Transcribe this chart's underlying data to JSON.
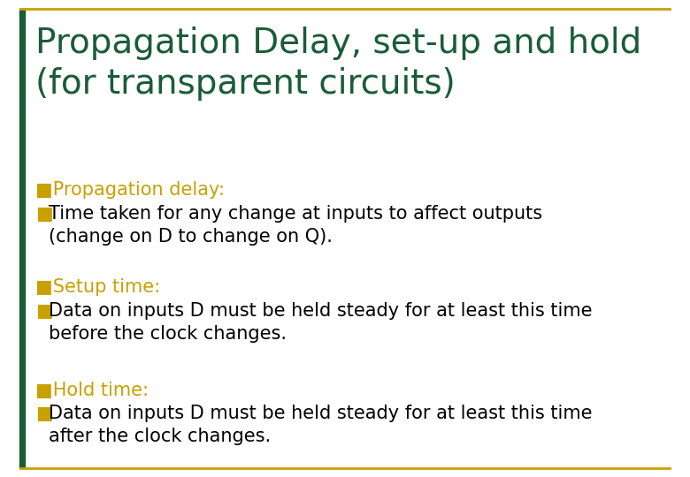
{
  "title_line1": "Propagation Delay, set-up and hold",
  "title_line2": "(for transparent circuits)",
  "title_color": "#1a5c38",
  "bullet_color": "#c8a000",
  "text_color": "#000000",
  "bg_color": "#ffffff",
  "border_color": "#c8a000",
  "left_bar_color": "#1a5c38",
  "sections": [
    {
      "header": "Propagation delay:",
      "bullets": [
        "Time taken for any change at inputs to affect outputs\n(change on D to change on Q)."
      ]
    },
    {
      "header": "Setup time:",
      "bullets": [
        "Data on inputs D must be held steady for at least this time\nbefore the clock changes."
      ]
    },
    {
      "header": "Hold time:",
      "bullets": [
        "Data on inputs D must be held steady for at least this time\nafter the clock changes."
      ]
    }
  ],
  "title_fontsize": 28,
  "header_fontsize": 15,
  "body_fontsize": 15,
  "figwidth": 7.8,
  "figheight": 5.4,
  "dpi": 100
}
